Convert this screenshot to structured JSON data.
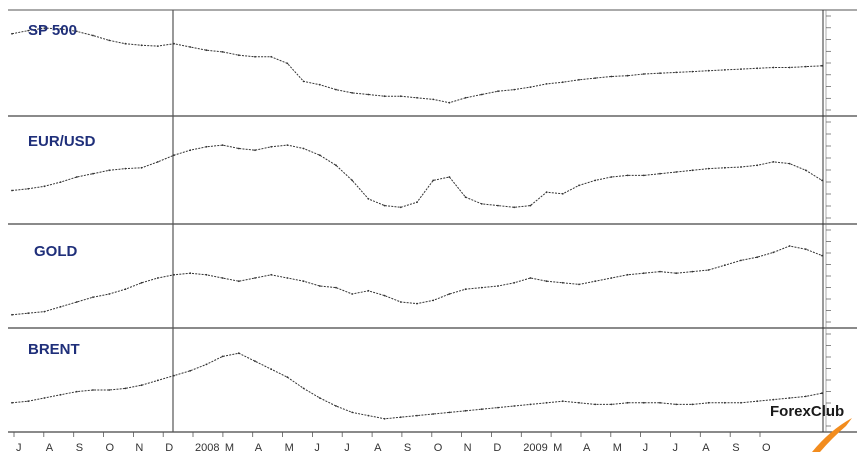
{
  "chart_data": {
    "type": "line",
    "grid": false,
    "logo": {
      "word1": "Forex",
      "word2": "Club",
      "accent_color": "#f28c1e"
    },
    "line_color": "#333333",
    "label_color": "#1f2f7a",
    "months": [
      "J",
      "A",
      "S",
      "O",
      "N",
      "D",
      "2008",
      "M",
      "A",
      "M",
      "J",
      "J",
      "A",
      "S",
      "O",
      "N",
      "D",
      "2009",
      "M",
      "A",
      "M",
      "J",
      "J",
      "A",
      "S",
      "O"
    ],
    "panels": [
      {
        "label": "SP 500",
        "ylim": [
          0,
          100
        ],
        "x": [
          0,
          2,
          4,
          6,
          8,
          10,
          12,
          14,
          16,
          18,
          20,
          22,
          24,
          26,
          28,
          30,
          32,
          34,
          36,
          38,
          40,
          42,
          44,
          46,
          48,
          50,
          52,
          54,
          56,
          58,
          60,
          62,
          64,
          66,
          68,
          70,
          72,
          74,
          76,
          78,
          80,
          82,
          84,
          86,
          88,
          90,
          92,
          94,
          96,
          98,
          100
        ],
        "values": [
          88,
          92,
          95,
          94,
          91,
          86,
          80,
          76,
          74,
          73,
          76,
          72,
          68,
          66,
          62,
          60,
          60,
          52,
          30,
          26,
          20,
          16,
          14,
          12,
          12,
          10,
          8,
          4,
          10,
          14,
          18,
          20,
          23,
          27,
          29,
          32,
          34,
          36,
          37,
          39,
          40,
          41,
          42,
          43,
          44,
          45,
          46,
          47,
          47,
          48,
          49
        ]
      },
      {
        "label": "EUR/USD",
        "ylim": [
          0,
          100
        ],
        "x": [
          0,
          2,
          4,
          6,
          8,
          10,
          12,
          14,
          16,
          18,
          20,
          22,
          24,
          26,
          28,
          30,
          32,
          34,
          36,
          38,
          40,
          42,
          44,
          46,
          48,
          50,
          52,
          54,
          56,
          58,
          60,
          62,
          64,
          66,
          68,
          70,
          72,
          74,
          76,
          78,
          80,
          82,
          84,
          86,
          88,
          90,
          92,
          94,
          96,
          98,
          100
        ],
        "values": [
          28,
          30,
          33,
          38,
          44,
          48,
          52,
          54,
          55,
          62,
          70,
          76,
          80,
          82,
          78,
          76,
          80,
          82,
          78,
          70,
          58,
          40,
          18,
          10,
          8,
          14,
          40,
          44,
          20,
          12,
          10,
          8,
          10,
          26,
          24,
          34,
          40,
          44,
          46,
          46,
          48,
          50,
          52,
          54,
          55,
          56,
          58,
          62,
          60,
          52,
          40
        ]
      },
      {
        "label": "GOLD",
        "ylim": [
          0,
          100
        ],
        "x": [
          0,
          2,
          4,
          6,
          8,
          10,
          12,
          14,
          16,
          18,
          20,
          22,
          24,
          26,
          28,
          30,
          32,
          34,
          36,
          38,
          40,
          42,
          44,
          46,
          48,
          50,
          52,
          54,
          56,
          58,
          60,
          62,
          64,
          66,
          68,
          70,
          72,
          74,
          76,
          78,
          80,
          82,
          84,
          86,
          88,
          90,
          92,
          94,
          96,
          98,
          100
        ],
        "values": [
          4,
          6,
          8,
          14,
          20,
          26,
          30,
          36,
          44,
          50,
          54,
          56,
          54,
          50,
          46,
          50,
          54,
          50,
          46,
          40,
          38,
          30,
          34,
          28,
          20,
          18,
          22,
          30,
          36,
          38,
          40,
          44,
          50,
          46,
          44,
          42,
          46,
          50,
          54,
          56,
          58,
          56,
          58,
          60,
          66,
          72,
          76,
          82,
          90,
          86,
          78
        ]
      },
      {
        "label": "BRENT",
        "ylim": [
          0,
          100
        ],
        "x": [
          0,
          2,
          4,
          6,
          8,
          10,
          12,
          14,
          16,
          18,
          20,
          22,
          24,
          26,
          28,
          30,
          32,
          34,
          36,
          38,
          40,
          42,
          44,
          46,
          48,
          50,
          52,
          54,
          56,
          58,
          60,
          62,
          64,
          66,
          68,
          70,
          72,
          74,
          76,
          78,
          80,
          82,
          84,
          86,
          88,
          90,
          92,
          94,
          96,
          98,
          100
        ],
        "values": [
          24,
          26,
          30,
          34,
          38,
          40,
          40,
          42,
          46,
          52,
          58,
          64,
          72,
          82,
          86,
          76,
          66,
          56,
          42,
          30,
          20,
          12,
          8,
          4,
          6,
          8,
          10,
          12,
          14,
          16,
          18,
          20,
          22,
          24,
          26,
          24,
          22,
          22,
          24,
          24,
          24,
          22,
          22,
          24,
          24,
          24,
          26,
          28,
          30,
          32,
          36
        ]
      }
    ]
  }
}
